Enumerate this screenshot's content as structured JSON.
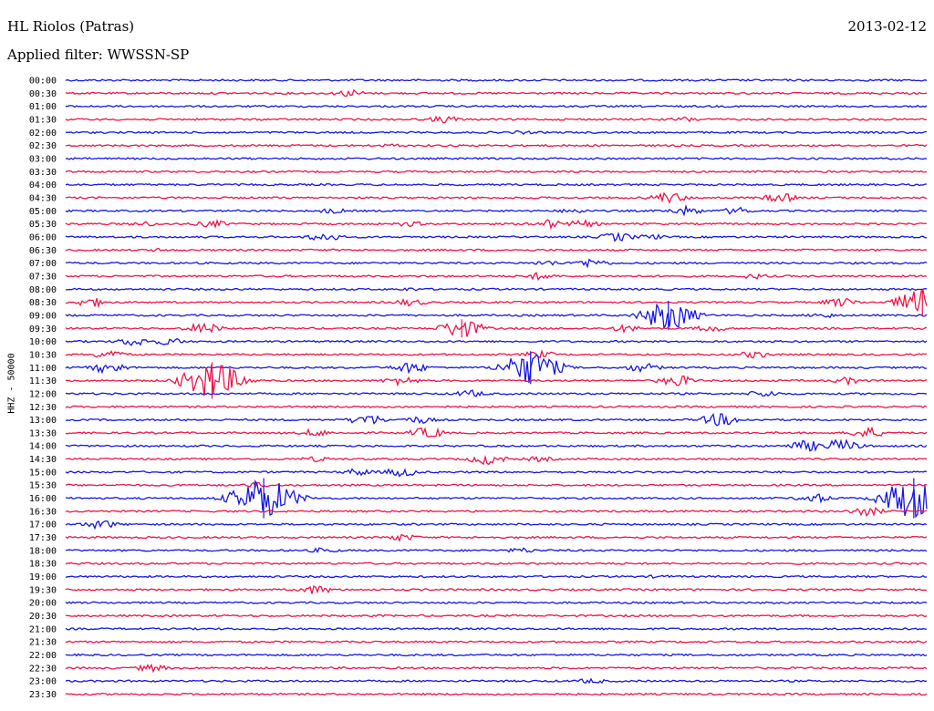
{
  "header": {
    "title": "HL Riolos (Patras)",
    "date": "2013-02-12",
    "filter": "Applied filter: WWSSN-SP"
  },
  "colors": {
    "blue": "#1616e6",
    "red": "#f0144a"
  },
  "chart_data": {
    "type": "line",
    "ylabel": "HHZ - 50000",
    "rows": [
      {
        "label": "00:00",
        "color": "blue",
        "events": [
          {
            "t": 0.96,
            "a": 1
          }
        ]
      },
      {
        "label": "00:30",
        "color": "red",
        "events": [
          {
            "t": 0.33,
            "a": 4
          }
        ]
      },
      {
        "label": "01:00",
        "color": "blue",
        "events": []
      },
      {
        "label": "01:30",
        "color": "red",
        "events": [
          {
            "t": 0.44,
            "a": 4
          },
          {
            "t": 0.72,
            "a": 3
          }
        ]
      },
      {
        "label": "02:00",
        "color": "blue",
        "events": [
          {
            "t": 0.53,
            "a": 2
          }
        ]
      },
      {
        "label": "02:30",
        "color": "red",
        "events": [
          {
            "t": 0.38,
            "a": 2
          }
        ]
      },
      {
        "label": "03:00",
        "color": "blue",
        "events": []
      },
      {
        "label": "03:30",
        "color": "red",
        "events": []
      },
      {
        "label": "04:00",
        "color": "blue",
        "events": []
      },
      {
        "label": "04:30",
        "color": "red",
        "events": [
          {
            "t": 0.7,
            "a": 6
          },
          {
            "t": 0.83,
            "a": 5
          }
        ]
      },
      {
        "label": "05:00",
        "color": "blue",
        "events": [
          {
            "t": 0.31,
            "a": 3
          },
          {
            "t": 0.59,
            "a": 3
          },
          {
            "t": 0.72,
            "a": 5
          },
          {
            "t": 0.78,
            "a": 4
          }
        ]
      },
      {
        "label": "05:30",
        "color": "red",
        "events": [
          {
            "t": 0.09,
            "a": 3
          },
          {
            "t": 0.17,
            "a": 4
          },
          {
            "t": 0.4,
            "a": 3
          },
          {
            "t": 0.56,
            "a": 5
          },
          {
            "t": 0.6,
            "a": 4
          }
        ]
      },
      {
        "label": "06:00",
        "color": "blue",
        "events": [
          {
            "t": 0.3,
            "a": 5
          },
          {
            "t": 0.64,
            "a": 5
          },
          {
            "t": 0.68,
            "a": 3
          }
        ]
      },
      {
        "label": "06:30",
        "color": "red",
        "events": [
          {
            "t": 0.11,
            "a": 2
          }
        ]
      },
      {
        "label": "07:00",
        "color": "blue",
        "events": [
          {
            "t": 0.56,
            "a": 3
          },
          {
            "t": 0.61,
            "a": 5
          }
        ]
      },
      {
        "label": "07:30",
        "color": "red",
        "events": [
          {
            "t": 0.55,
            "a": 4
          },
          {
            "t": 0.8,
            "a": 3
          }
        ]
      },
      {
        "label": "08:00",
        "color": "blue",
        "events": [
          {
            "t": 0.4,
            "a": 2
          }
        ]
      },
      {
        "label": "08:30",
        "color": "red",
        "events": [
          {
            "t": 0.03,
            "a": 5
          },
          {
            "t": 0.4,
            "a": 4
          },
          {
            "t": 0.9,
            "a": 5
          },
          {
            "t": 0.995,
            "a": 14
          }
        ]
      },
      {
        "label": "09:00",
        "color": "blue",
        "events": [
          {
            "t": 0.7,
            "a": 16
          },
          {
            "t": 0.88,
            "a": 3
          }
        ]
      },
      {
        "label": "09:30",
        "color": "red",
        "events": [
          {
            "t": 0.16,
            "a": 6
          },
          {
            "t": 0.46,
            "a": 10
          },
          {
            "t": 0.65,
            "a": 4
          },
          {
            "t": 0.75,
            "a": 4
          }
        ]
      },
      {
        "label": "10:00",
        "color": "blue",
        "events": [
          {
            "t": 0.08,
            "a": 5
          },
          {
            "t": 0.12,
            "a": 4
          }
        ]
      },
      {
        "label": "10:30",
        "color": "red",
        "events": [
          {
            "t": 0.05,
            "a": 5
          },
          {
            "t": 0.55,
            "a": 4
          },
          {
            "t": 0.8,
            "a": 4
          }
        ]
      },
      {
        "label": "11:00",
        "color": "blue",
        "events": [
          {
            "t": 0.05,
            "a": 6
          },
          {
            "t": 0.4,
            "a": 6
          },
          {
            "t": 0.54,
            "a": 18
          },
          {
            "t": 0.67,
            "a": 5
          }
        ]
      },
      {
        "label": "11:30",
        "color": "red",
        "events": [
          {
            "t": 0.17,
            "a": 20
          },
          {
            "t": 0.39,
            "a": 5
          },
          {
            "t": 0.71,
            "a": 6
          },
          {
            "t": 0.91,
            "a": 4
          }
        ]
      },
      {
        "label": "12:00",
        "color": "blue",
        "events": [
          {
            "t": 0.47,
            "a": 4
          },
          {
            "t": 0.81,
            "a": 4
          }
        ]
      },
      {
        "label": "12:30",
        "color": "red",
        "events": []
      },
      {
        "label": "13:00",
        "color": "blue",
        "events": [
          {
            "t": 0.35,
            "a": 6
          },
          {
            "t": 0.41,
            "a": 4
          },
          {
            "t": 0.76,
            "a": 7
          }
        ]
      },
      {
        "label": "13:30",
        "color": "red",
        "events": [
          {
            "t": 0.29,
            "a": 4
          },
          {
            "t": 0.42,
            "a": 6
          },
          {
            "t": 0.93,
            "a": 6
          }
        ]
      },
      {
        "label": "14:00",
        "color": "blue",
        "events": [
          {
            "t": 0.86,
            "a": 6
          },
          {
            "t": 0.9,
            "a": 7
          }
        ]
      },
      {
        "label": "14:30",
        "color": "red",
        "events": [
          {
            "t": 0.29,
            "a": 3
          },
          {
            "t": 0.49,
            "a": 6
          },
          {
            "t": 0.55,
            "a": 3
          }
        ]
      },
      {
        "label": "15:00",
        "color": "blue",
        "events": [
          {
            "t": 0.34,
            "a": 4
          },
          {
            "t": 0.39,
            "a": 5
          }
        ]
      },
      {
        "label": "15:30",
        "color": "red",
        "events": [
          {
            "t": 0.22,
            "a": 3
          }
        ]
      },
      {
        "label": "16:00",
        "color": "blue",
        "events": [
          {
            "t": 0.23,
            "a": 22
          },
          {
            "t": 0.87,
            "a": 5
          },
          {
            "t": 0.985,
            "a": 22
          }
        ]
      },
      {
        "label": "16:30",
        "color": "red",
        "events": [
          {
            "t": 0.93,
            "a": 5
          }
        ]
      },
      {
        "label": "17:00",
        "color": "blue",
        "events": [
          {
            "t": 0.04,
            "a": 5
          }
        ]
      },
      {
        "label": "17:30",
        "color": "red",
        "events": [
          {
            "t": 0.39,
            "a": 4
          }
        ]
      },
      {
        "label": "18:00",
        "color": "blue",
        "events": [
          {
            "t": 0.3,
            "a": 3
          },
          {
            "t": 0.53,
            "a": 3
          }
        ]
      },
      {
        "label": "18:30",
        "color": "red",
        "events": []
      },
      {
        "label": "19:00",
        "color": "blue",
        "events": [
          {
            "t": 0.69,
            "a": 2
          }
        ]
      },
      {
        "label": "19:30",
        "color": "red",
        "events": [
          {
            "t": 0.29,
            "a": 5
          }
        ]
      },
      {
        "label": "20:00",
        "color": "blue",
        "events": []
      },
      {
        "label": "20:30",
        "color": "red",
        "events": []
      },
      {
        "label": "21:00",
        "color": "blue",
        "events": []
      },
      {
        "label": "21:30",
        "color": "red",
        "events": []
      },
      {
        "label": "22:00",
        "color": "blue",
        "events": []
      },
      {
        "label": "22:30",
        "color": "red",
        "events": [
          {
            "t": 0.1,
            "a": 4
          }
        ]
      },
      {
        "label": "23:00",
        "color": "blue",
        "events": [
          {
            "t": 0.61,
            "a": 3
          }
        ]
      },
      {
        "label": "23:30",
        "color": "red",
        "events": []
      }
    ]
  }
}
